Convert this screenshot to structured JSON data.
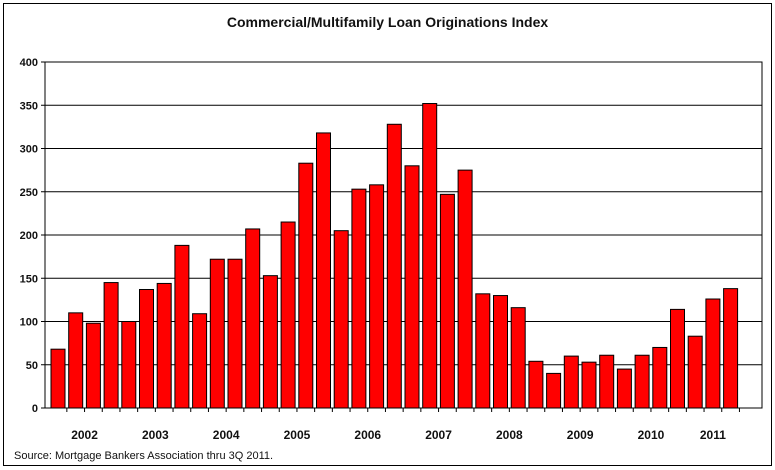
{
  "chart_data": {
    "type": "bar",
    "title": "Commercial/Multifamily Loan Originations Index",
    "source": "Source:  Mortgage Bankers Association thru 3Q 2011.",
    "xlabel": "",
    "ylabel": "",
    "ylim": [
      0,
      400
    ],
    "yticks": [
      0,
      50,
      100,
      150,
      200,
      250,
      300,
      350,
      400
    ],
    "grid": true,
    "legend": "none",
    "bar_color": "#ff0000",
    "year_labels": [
      "2002",
      "2003",
      "2004",
      "2005",
      "2006",
      "2007",
      "2008",
      "2009",
      "2010",
      "2011"
    ],
    "categories": [
      "2002 Q1",
      "2002 Q2",
      "2002 Q3",
      "2002 Q4",
      "2003 Q1",
      "2003 Q2",
      "2003 Q3",
      "2003 Q4",
      "2004 Q1",
      "2004 Q2",
      "2004 Q3",
      "2004 Q4",
      "2005 Q1",
      "2005 Q2",
      "2005 Q3",
      "2005 Q4",
      "2006 Q1",
      "2006 Q2",
      "2006 Q3",
      "2006 Q4",
      "2007 Q1",
      "2007 Q2",
      "2007 Q3",
      "2007 Q4",
      "2008 Q1",
      "2008 Q2",
      "2008 Q3",
      "2008 Q4",
      "2009 Q1",
      "2009 Q2",
      "2009 Q3",
      "2009 Q4",
      "2010 Q1",
      "2010 Q2",
      "2010 Q3",
      "2010 Q4",
      "2011 Q1",
      "2011 Q2",
      "2011 Q3"
    ],
    "values": [
      68,
      110,
      98,
      145,
      100,
      137,
      144,
      188,
      109,
      172,
      172,
      207,
      153,
      215,
      283,
      318,
      205,
      253,
      258,
      328,
      280,
      352,
      247,
      275,
      132,
      130,
      116,
      54,
      40,
      60,
      53,
      61,
      45,
      61,
      70,
      114,
      83,
      126,
      138
    ]
  }
}
